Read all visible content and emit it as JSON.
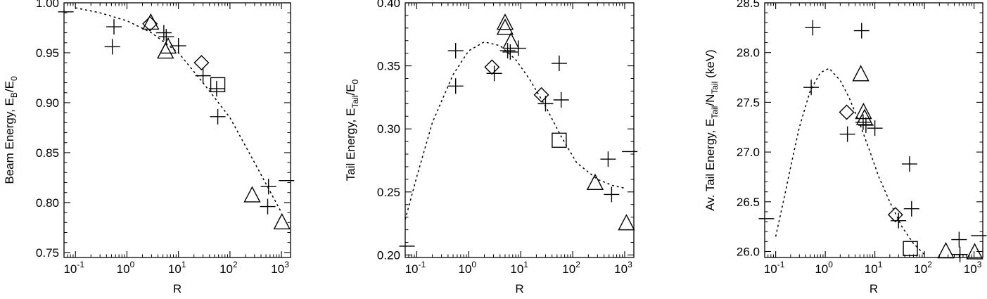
{
  "chart_data": [
    {
      "type": "scatter",
      "xlabel": "R",
      "ylabel": {
        "base": "Beam Energy, E",
        "sub1": "B",
        "mid": "/E",
        "sub2": "0"
      },
      "x_scale": "log",
      "xlim": [
        0.06,
        1500
      ],
      "ylim": [
        0.745,
        1.0
      ],
      "x_ticks": [
        {
          "exp": "-1",
          "value": 0.1
        },
        {
          "exp": "0",
          "value": 1
        },
        {
          "exp": "1",
          "value": 10
        },
        {
          "exp": "2",
          "value": 100
        },
        {
          "exp": "3",
          "value": 1000
        }
      ],
      "y_ticks": [
        "0.75",
        "0.80",
        "0.85",
        "0.90",
        "0.95",
        "1.00"
      ],
      "grid": false,
      "series": [
        {
          "marker": "plus",
          "points": [
            [
              0.56,
              0.976
            ],
            [
              0.52,
              0.956
            ],
            [
              5.2,
              0.97
            ],
            [
              5.8,
              0.966
            ],
            [
              10,
              0.957
            ],
            [
              30,
              0.927
            ],
            [
              55,
              0.914
            ],
            [
              58,
              0.886
            ],
            [
              560,
              0.816
            ],
            [
              540,
              0.796
            ]
          ]
        },
        {
          "marker": "dash",
          "points": [
            [
              0.065,
              0.991
            ],
            [
              1250,
              0.822
            ]
          ]
        },
        {
          "marker": "diamond",
          "points": [
            [
              2.8,
              0.979
            ],
            [
              28,
              0.94
            ]
          ]
        },
        {
          "marker": "triangle",
          "points": [
            [
              2.9,
              0.98
            ],
            [
              5.6,
              0.951
            ],
            [
              6.3,
              0.956
            ],
            [
              270,
              0.807
            ],
            [
              1020,
              0.78
            ]
          ]
        },
        {
          "marker": "square",
          "points": [
            [
              58,
              0.918
            ]
          ]
        },
        {
          "marker": "dotted-curve",
          "points": [
            [
              0.1,
              0.995
            ],
            [
              0.3,
              0.99
            ],
            [
              1,
              0.982
            ],
            [
              3,
              0.97
            ],
            [
              10,
              0.95
            ],
            [
              30,
              0.92
            ],
            [
              100,
              0.885
            ],
            [
              300,
              0.84
            ],
            [
              1000,
              0.79
            ]
          ]
        }
      ]
    },
    {
      "type": "scatter",
      "xlabel": "R",
      "ylabel": {
        "base": "Tail Energy, E",
        "sub1": "Tail",
        "mid": "/E",
        "sub2": "0"
      },
      "x_scale": "log",
      "xlim": [
        0.06,
        1500
      ],
      "ylim": [
        0.198,
        0.4
      ],
      "x_ticks": [
        {
          "exp": "-1",
          "value": 0.1
        },
        {
          "exp": "0",
          "value": 1
        },
        {
          "exp": "1",
          "value": 10
        },
        {
          "exp": "2",
          "value": 100
        },
        {
          "exp": "3",
          "value": 1000
        }
      ],
      "y_ticks": [
        "0.20",
        "0.25",
        "0.30",
        "0.35",
        "0.40"
      ],
      "grid": false,
      "series": [
        {
          "marker": "plus",
          "points": [
            [
              0.56,
              0.362
            ],
            [
              0.56,
              0.334
            ],
            [
              3.1,
              0.344
            ],
            [
              5.6,
              0.362
            ],
            [
              6.3,
              0.361
            ],
            [
              9,
              0.364
            ],
            [
              30,
              0.32
            ],
            [
              55,
              0.352
            ],
            [
              60,
              0.323
            ],
            [
              480,
              0.276
            ],
            [
              560,
              0.248
            ]
          ]
        },
        {
          "marker": "dash",
          "points": [
            [
              0.065,
              0.207
            ],
            [
              1250,
              0.282
            ]
          ]
        },
        {
          "marker": "diamond",
          "points": [
            [
              2.8,
              0.349
            ],
            [
              25,
              0.327
            ]
          ]
        },
        {
          "marker": "triangle",
          "points": [
            [
              5.0,
              0.384
            ],
            [
              5.0,
              0.38
            ],
            [
              6.5,
              0.369
            ],
            [
              270,
              0.257
            ],
            [
              1080,
              0.225
            ]
          ]
        },
        {
          "marker": "square",
          "points": [
            [
              55,
              0.291
            ]
          ]
        },
        {
          "marker": "dotted-curve",
          "points": [
            [
              0.06,
              0.228
            ],
            [
              0.1,
              0.262
            ],
            [
              0.2,
              0.305
            ],
            [
              0.5,
              0.343
            ],
            [
              1,
              0.362
            ],
            [
              2,
              0.369
            ],
            [
              4,
              0.366
            ],
            [
              8,
              0.355
            ],
            [
              15,
              0.339
            ],
            [
              30,
              0.318
            ],
            [
              60,
              0.294
            ],
            [
              120,
              0.273
            ],
            [
              300,
              0.26
            ],
            [
              600,
              0.255
            ],
            [
              1000,
              0.253
            ]
          ]
        }
      ]
    },
    {
      "type": "scatter",
      "xlabel": "R",
      "ylabel": {
        "base": "Av. Tail Energy, E",
        "sub1": "Tail",
        "mid": "/N",
        "sub2": "Tail",
        "end": " (keV)"
      },
      "x_scale": "log",
      "xlim": [
        0.06,
        1500
      ],
      "ylim": [
        25.94,
        28.5
      ],
      "x_ticks": [
        {
          "exp": "-1",
          "value": 0.1
        },
        {
          "exp": "0",
          "value": 1
        },
        {
          "exp": "1",
          "value": 10
        },
        {
          "exp": "2",
          "value": 100
        },
        {
          "exp": "3",
          "value": 1000
        }
      ],
      "y_ticks": [
        "26.0",
        "26.5",
        "27.0",
        "27.5",
        "28.0",
        "28.5"
      ],
      "grid": false,
      "series": [
        {
          "marker": "plus",
          "points": [
            [
              0.56,
              28.25
            ],
            [
              0.52,
              27.65
            ],
            [
              2.8,
              27.18
            ],
            [
              5.4,
              28.22
            ],
            [
              5.8,
              27.3
            ],
            [
              6.6,
              27.27
            ],
            [
              10,
              27.24
            ],
            [
              50,
              26.88
            ],
            [
              55,
              26.43
            ],
            [
              30,
              26.31
            ],
            [
              500,
              26.12
            ],
            [
              520,
              25.97
            ]
          ]
        },
        {
          "marker": "dash",
          "points": [
            [
              0.065,
              26.33
            ],
            [
              1250,
              26.16
            ]
          ]
        },
        {
          "marker": "diamond",
          "points": [
            [
              2.7,
              27.4
            ],
            [
              26,
              26.37
            ]
          ]
        },
        {
          "marker": "triangle",
          "points": [
            [
              5.2,
              27.78
            ],
            [
              5.9,
              27.4
            ],
            [
              6.2,
              27.34
            ],
            [
              270,
              26.0
            ],
            [
              1030,
              25.99
            ]
          ]
        },
        {
          "marker": "square",
          "points": [
            [
              52,
              26.03
            ]
          ]
        },
        {
          "marker": "dotted-curve",
          "points": [
            [
              0.1,
              26.15
            ],
            [
              0.15,
              26.55
            ],
            [
              0.2,
              26.85
            ],
            [
              0.3,
              27.25
            ],
            [
              0.5,
              27.62
            ],
            [
              0.8,
              27.8
            ],
            [
              1.2,
              27.84
            ],
            [
              2,
              27.72
            ],
            [
              3,
              27.55
            ],
            [
              5,
              27.28
            ],
            [
              8,
              27.0
            ],
            [
              12,
              26.75
            ],
            [
              20,
              26.5
            ],
            [
              35,
              26.25
            ],
            [
              60,
              26.08
            ],
            [
              100,
              25.97
            ]
          ]
        }
      ]
    }
  ]
}
